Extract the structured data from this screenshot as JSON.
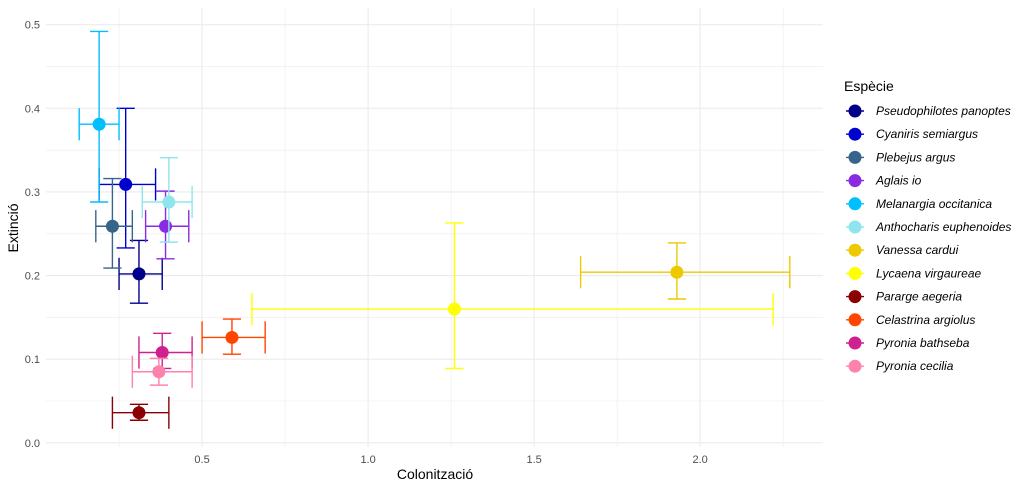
{
  "chart_data": {
    "type": "scatter",
    "xlabel": "Colonització",
    "ylabel": "Extinció",
    "xlim": [
      0.03,
      2.37
    ],
    "ylim": [
      -0.005,
      0.52
    ],
    "x_ticks": [
      0.5,
      1.0,
      1.5,
      2.0
    ],
    "x_tick_labels": [
      "0.5",
      "1.0",
      "1.5",
      "2.0"
    ],
    "y_ticks": [
      0.0,
      0.1,
      0.2,
      0.3,
      0.4,
      0.5
    ],
    "y_tick_labels": [
      "0.0",
      "0.1",
      "0.2",
      "0.3",
      "0.4",
      "0.5"
    ],
    "grid": true,
    "legend": {
      "title": "Espècie",
      "position": "right"
    },
    "series": [
      {
        "name": "Pseudophilotes panoptes",
        "color": "#00008B",
        "x": 0.31,
        "y": 0.202,
        "x_err": [
          0.25,
          0.38
        ],
        "y_err": [
          0.167,
          0.242
        ]
      },
      {
        "name": "Cyaniris semiargus",
        "color": "#0000CD",
        "x": 0.27,
        "y": 0.309,
        "x_err": [
          0.19,
          0.36
        ],
        "y_err": [
          0.233,
          0.4
        ]
      },
      {
        "name": "Plebejus argus",
        "color": "#36648B",
        "x": 0.23,
        "y": 0.259,
        "x_err": [
          0.18,
          0.29
        ],
        "y_err": [
          0.209,
          0.316
        ]
      },
      {
        "name": "Aglais io",
        "color": "#8A2BE2",
        "x": 0.39,
        "y": 0.259,
        "x_err": [
          0.33,
          0.46
        ],
        "y_err": [
          0.22,
          0.301
        ]
      },
      {
        "name": "Melanargia occitanica",
        "color": "#00BFFF",
        "x": 0.19,
        "y": 0.381,
        "x_err": [
          0.13,
          0.25
        ],
        "y_err": [
          0.288,
          0.492
        ]
      },
      {
        "name": "Anthocharis euphenoides",
        "color": "#8EE5EE",
        "x": 0.4,
        "y": 0.288,
        "x_err": [
          0.32,
          0.47
        ],
        "y_err": [
          0.24,
          0.341
        ]
      },
      {
        "name": "Vanessa cardui",
        "color": "#EEC900",
        "x": 1.93,
        "y": 0.204,
        "x_err": [
          1.64,
          2.27
        ],
        "y_err": [
          0.172,
          0.239
        ]
      },
      {
        "name": "Lycaena virgaureae",
        "color": "#FFFF00",
        "x": 1.26,
        "y": 0.16,
        "x_err": [
          0.65,
          2.22
        ],
        "y_err": [
          0.089,
          0.263
        ]
      },
      {
        "name": "Pararge aegeria",
        "color": "#8B0000",
        "x": 0.31,
        "y": 0.036,
        "x_err": [
          0.23,
          0.4
        ],
        "y_err": [
          0.027,
          0.046
        ]
      },
      {
        "name": "Celastrina argiolus",
        "color": "#FF4500",
        "x": 0.59,
        "y": 0.126,
        "x_err": [
          0.5,
          0.69
        ],
        "y_err": [
          0.106,
          0.148
        ]
      },
      {
        "name": "Pyronia bathseba",
        "color": "#D02090",
        "x": 0.38,
        "y": 0.108,
        "x_err": [
          0.31,
          0.47
        ],
        "y_err": [
          0.089,
          0.131
        ]
      },
      {
        "name": "Pyronia cecilia",
        "color": "#FF82AB",
        "x": 0.37,
        "y": 0.085,
        "x_err": [
          0.29,
          0.47
        ],
        "y_err": [
          0.069,
          0.101
        ]
      }
    ]
  }
}
